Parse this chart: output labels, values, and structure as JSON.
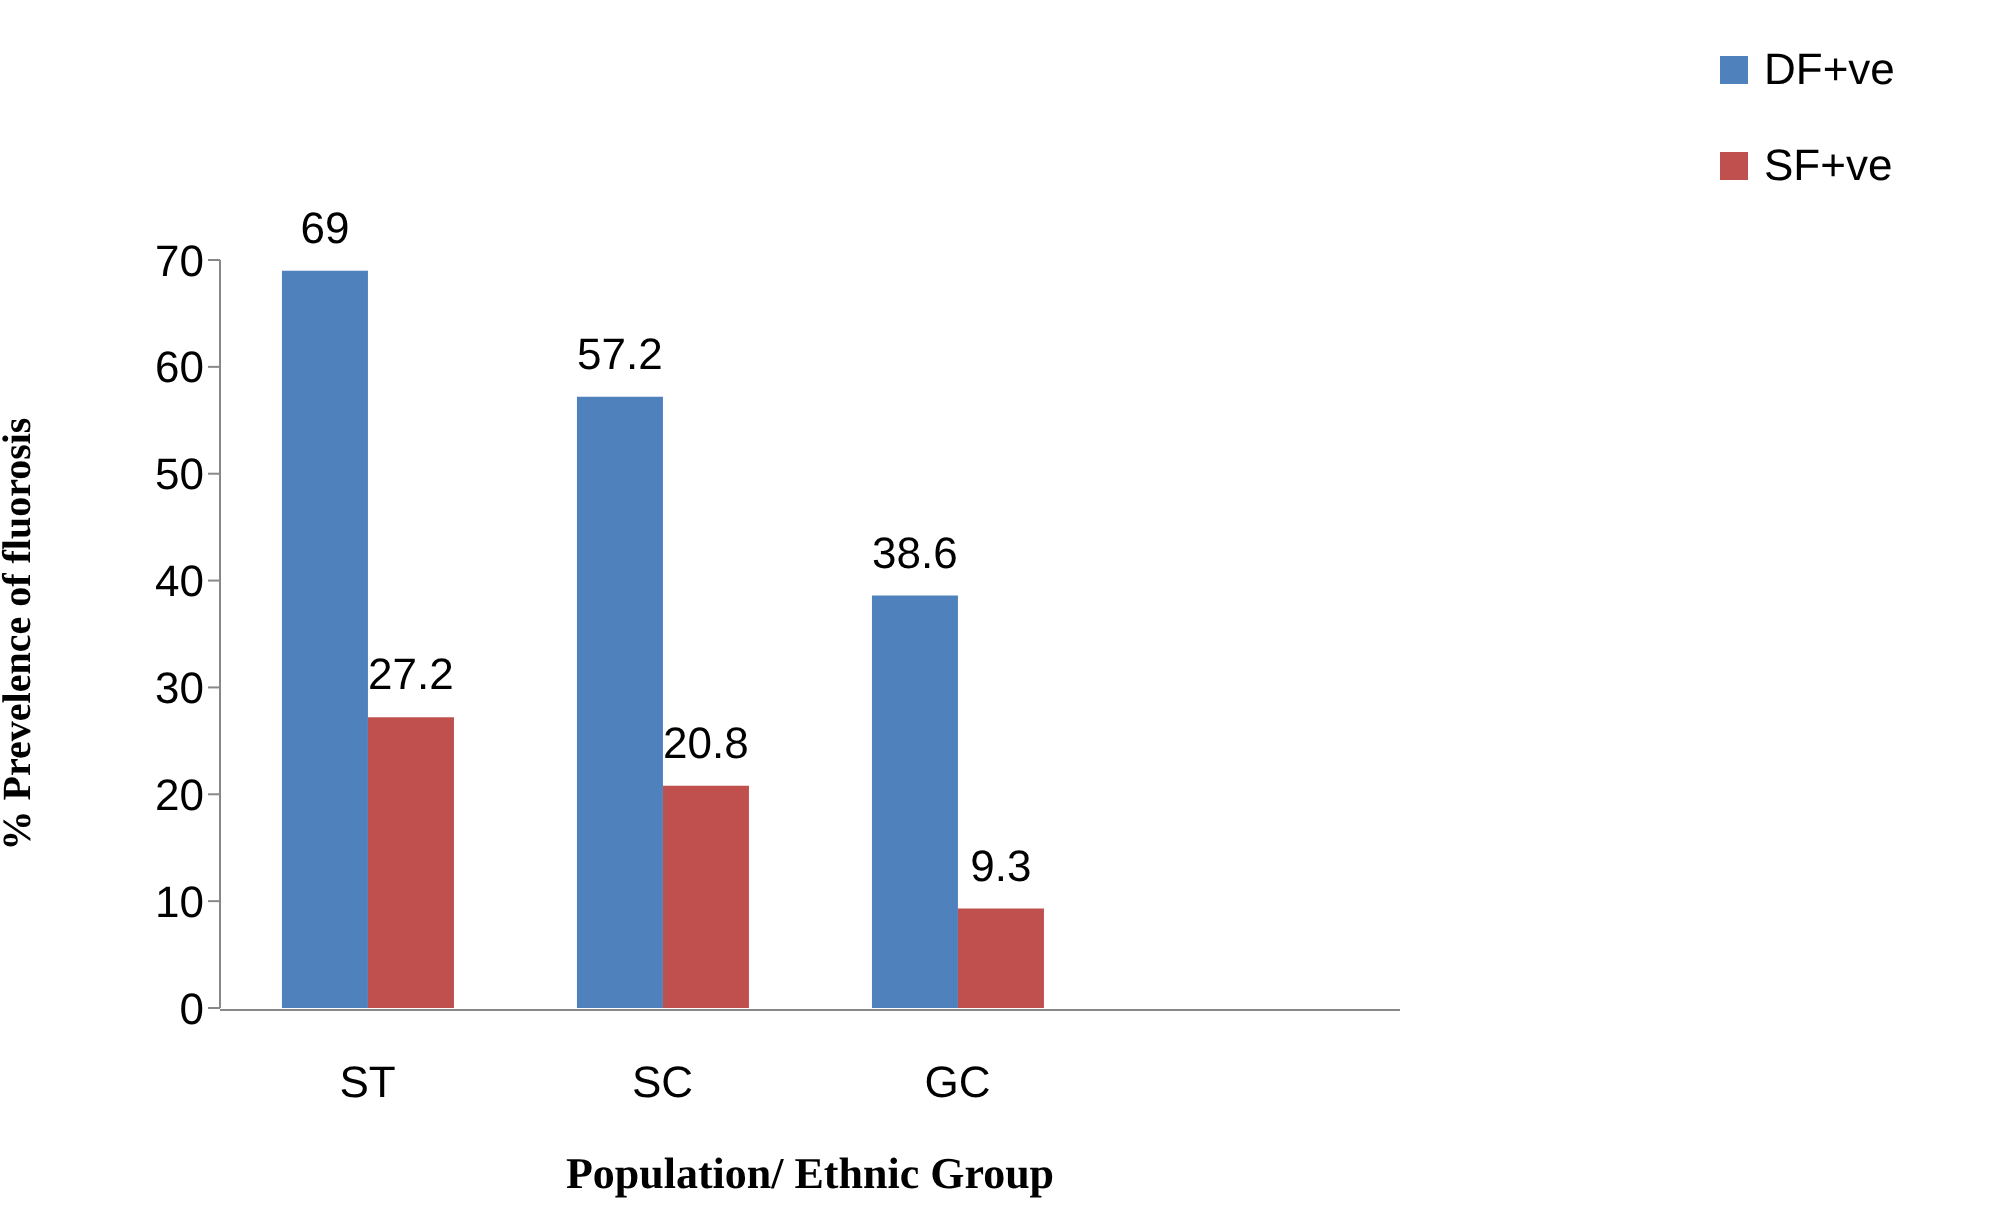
{
  "chart_data": {
    "type": "bar",
    "xlabel": "Population/ Ethnic Group",
    "ylabel": "% Prevelence of fluorosis",
    "categories": [
      "ST",
      "SC",
      "GC",
      null
    ],
    "series": [
      {
        "name": "DF+ve",
        "color": "#4f81bd",
        "values": [
          69,
          57.2,
          38.6,
          null
        ]
      },
      {
        "name": "SF+ve",
        "color": "#c0504d",
        "values": [
          27.2,
          20.8,
          9.3,
          null
        ]
      }
    ],
    "ylim": [
      0,
      70
    ],
    "yticks": [
      0,
      10,
      20,
      30,
      40,
      50,
      60,
      70
    ],
    "grid": false,
    "legend": "top right",
    "data_labels": true
  }
}
